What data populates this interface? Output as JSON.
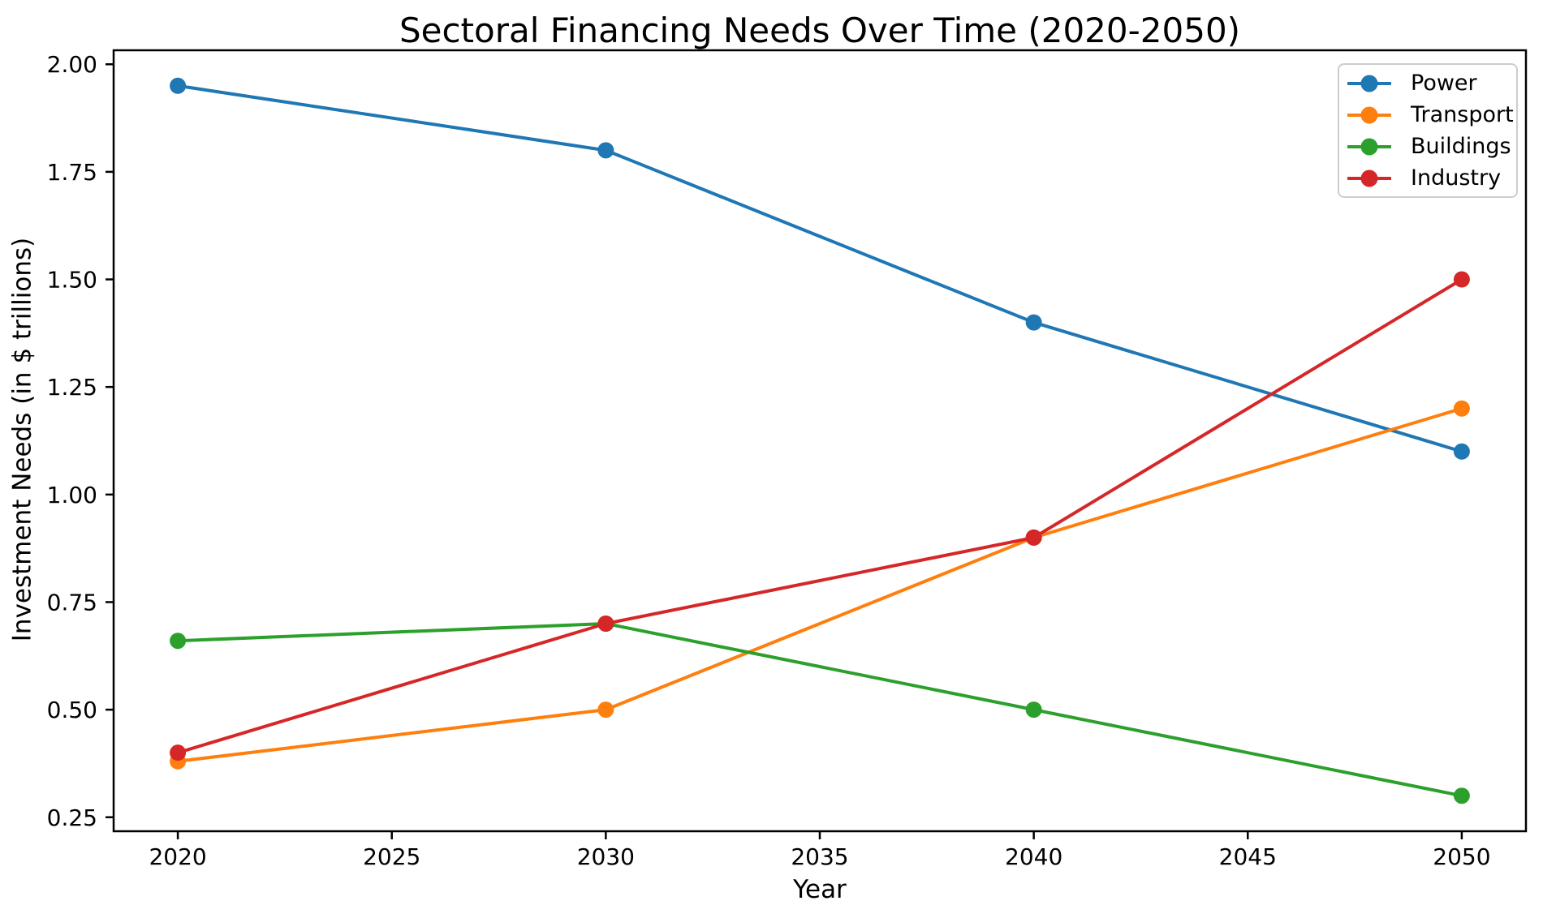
{
  "window": {
    "background": "#ffffff"
  },
  "chart_data": {
    "type": "line",
    "title": "Sectoral Financing Needs Over Time (2020-2050)",
    "xlabel": "Year",
    "ylabel": "Investment Needs (in $ trillions)",
    "x": [
      2020,
      2030,
      2040,
      2050
    ],
    "series": [
      {
        "name": "Power",
        "color": "#1f77b4",
        "values": [
          1.95,
          1.8,
          1.4,
          1.1
        ]
      },
      {
        "name": "Transport",
        "color": "#ff7f0e",
        "values": [
          0.38,
          0.5,
          0.9,
          1.2
        ]
      },
      {
        "name": "Buildings",
        "color": "#2ca02c",
        "values": [
          0.66,
          0.7,
          0.5,
          0.3
        ]
      },
      {
        "name": "Industry",
        "color": "#d62728",
        "values": [
          0.4,
          0.7,
          0.9,
          1.5
        ]
      }
    ],
    "marker": "o",
    "grid": false,
    "legend_position": "upper right",
    "xlim": [
      2018.5,
      2051.5
    ],
    "ylim": [
      0.2175,
      2.0325
    ],
    "xticks": {
      "values": [
        2020,
        2025,
        2030,
        2035,
        2040,
        2045,
        2050
      ],
      "labels": [
        "2020",
        "2025",
        "2030",
        "2035",
        "2040",
        "2045",
        "2050"
      ]
    },
    "yticks": {
      "values": [
        0.25,
        0.5,
        0.75,
        1.0,
        1.25,
        1.5,
        1.75,
        2.0
      ],
      "labels": [
        "0.25",
        "0.50",
        "0.75",
        "1.00",
        "1.25",
        "1.50",
        "1.75",
        "2.00"
      ]
    },
    "axis_color": "#000000",
    "text_color": "#000000"
  }
}
